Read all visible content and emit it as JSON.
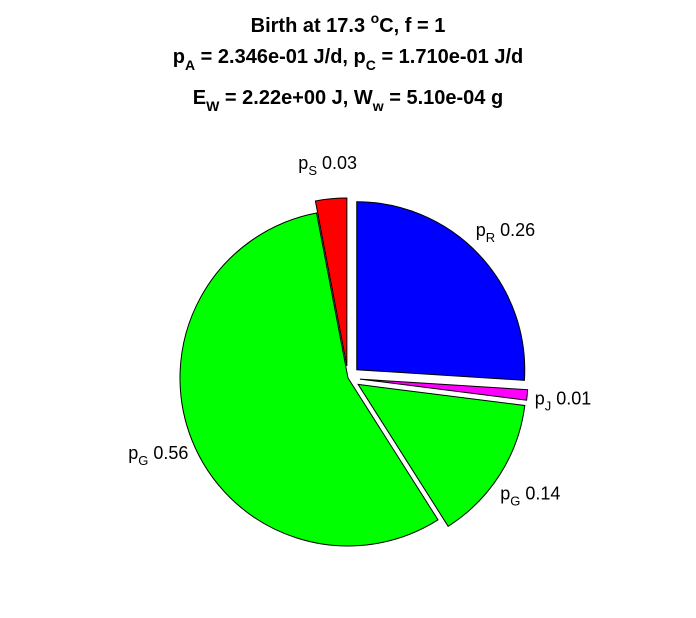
{
  "chart_data": {
    "type": "pie",
    "title": [
      [
        {
          "t": "Birth at 17.3 "
        },
        {
          "t": "o",
          "k": "sup"
        },
        {
          "t": "C, f = 1"
        }
      ],
      [
        {
          "t": "p"
        },
        {
          "t": "A",
          "k": "sub"
        },
        {
          "t": " = 2.346e-01 J/d, p"
        },
        {
          "t": "C",
          "k": "sub"
        },
        {
          "t": " = 1.710e-01 J/d"
        }
      ],
      [
        {
          "t": "E"
        },
        {
          "t": "W",
          "k": "sub"
        },
        {
          "t": " = 2.22e+00 J, W"
        },
        {
          "t": "w",
          "k": "sub"
        },
        {
          "t": " = 5.10e-04 g"
        }
      ]
    ],
    "slices": [
      {
        "name": "pR",
        "base": "p",
        "sub": "R",
        "value": 0.26,
        "color": "#0000ff",
        "explode": true
      },
      {
        "name": "pJ",
        "base": "p",
        "sub": "J",
        "value": 0.01,
        "color": "#ff00ff",
        "explode": true
      },
      {
        "name": "pG-growth",
        "base": "p",
        "sub": "G",
        "value": 0.14,
        "color": "#00ff00",
        "explode": true
      },
      {
        "name": "pG-structure",
        "base": "p",
        "sub": "G",
        "value": 0.56,
        "color": "#00ff00",
        "explode": false
      },
      {
        "name": "pS",
        "base": "p",
        "sub": "S",
        "value": 0.03,
        "color": "#ff0000",
        "explode": true
      }
    ]
  }
}
